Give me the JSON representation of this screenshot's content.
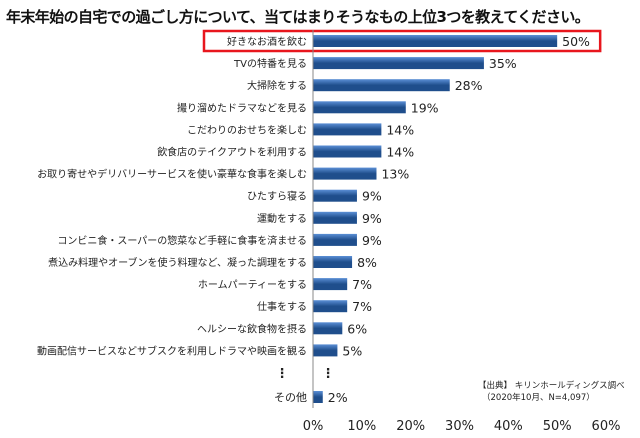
{
  "title": "年末年始の自宅での過ごし方について、当てはまりそうなもの上位3つを教えてください。",
  "source": {
    "line1": "【出典】 キリンホールディングス調べ",
    "line2": "（2020年10月、N=4,097）"
  },
  "colors": {
    "bar_dark": "#1f4e8c",
    "bar_light": "#5b8fd6",
    "highlight_border": "#e8161d",
    "axis": "#888888"
  },
  "chart_data": {
    "type": "bar",
    "orientation": "horizontal",
    "categories": [
      "好きなお酒を飲む",
      "TVの特番を見る",
      "大掃除をする",
      "撮り溜めたドラマなどを見る",
      "こだわりのおせちを楽しむ",
      "飲食店のテイクアウトを利用する",
      "お取り寄せやデリバリーサービスを使い豪華な食事を楽しむ",
      "ひたすら寝る",
      "運動をする",
      "コンビニ食・スーパーの惣菜など手軽に食事を済ませる",
      "煮込み料理やオーブンを使う料理など、凝った調理をする",
      "ホームパーティーをする",
      "仕事をする",
      "ヘルシーな飲食物を摂る",
      "動画配信サービスなどサブスクを利用しドラマや映画を観る"
    ],
    "values": [
      50,
      35,
      28,
      19,
      14,
      14,
      13,
      9,
      9,
      9,
      8,
      7,
      7,
      6,
      5
    ],
    "value_labels": [
      "50%",
      "35%",
      "28%",
      "19%",
      "14%",
      "14%",
      "13%",
      "9%",
      "9%",
      "9%",
      "8%",
      "7%",
      "7%",
      "6%",
      "5%"
    ],
    "ellipsis": "⋮",
    "other": {
      "category": "その他",
      "value": 2,
      "label": "2%"
    },
    "xlim": [
      0,
      60
    ],
    "x_ticks": [
      "0%",
      "10%",
      "20%",
      "30%",
      "40%",
      "50%",
      "60%"
    ],
    "highlight_category": "好きなお酒を飲む",
    "grid": false,
    "legend": "none"
  }
}
